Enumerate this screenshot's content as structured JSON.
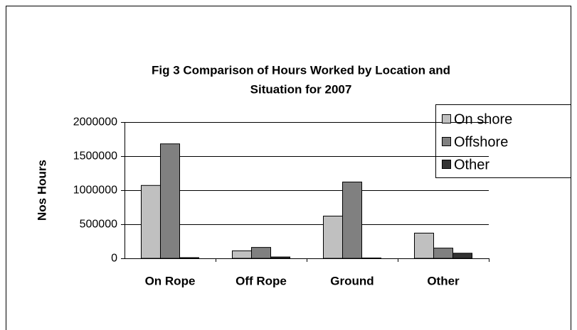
{
  "chart_data": {
    "type": "bar",
    "title": [
      "Fig 3   Comparison of Hours Worked by Location and",
      "Situation for 2007"
    ],
    "ylabel": "Nos Hours",
    "categories": [
      "On Rope",
      "Off Rope",
      "Ground",
      "Other"
    ],
    "series": [
      {
        "name": "On shore",
        "color": "#c0c0c0",
        "values": [
          1070000,
          110000,
          620000,
          370000
        ]
      },
      {
        "name": "Offshore",
        "color": "#808080",
        "values": [
          1680000,
          160000,
          1120000,
          150000
        ]
      },
      {
        "name": "Other",
        "color": "#333333",
        "values": [
          10000,
          20000,
          5000,
          75000
        ]
      }
    ],
    "ylim": [
      0,
      2000000
    ],
    "yticks": [
      0,
      500000,
      1000000,
      1500000,
      2000000
    ],
    "grid": true,
    "legend": "upper right"
  }
}
